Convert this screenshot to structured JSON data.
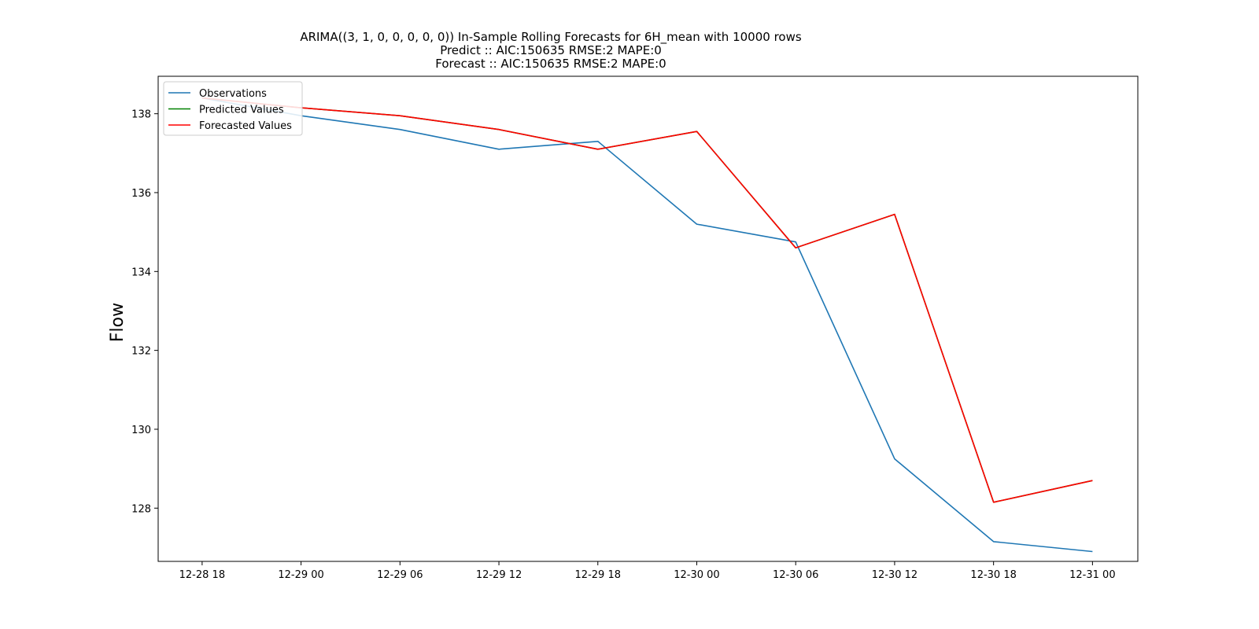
{
  "chart_data": {
    "type": "line",
    "title": [
      "ARIMA((3, 1, 0, 0, 0, 0, 0)) In-Sample Rolling Forecasts for 6H_mean with 10000 rows",
      "Predict :: AIC:150635 RMSE:2 MAPE:0",
      "Forecast :: AIC:150635 RMSE:2 MAPE:0"
    ],
    "xlabel": "",
    "ylabel": "Flow",
    "x": [
      "12-28 18",
      "12-29 00",
      "12-29 06",
      "12-29 12",
      "12-29 18",
      "12-30 00",
      "12-30 06",
      "12-30 12",
      "12-30 18",
      "12-31 00"
    ],
    "x_ticks": [
      "12-28 18",
      "12-29 00",
      "12-29 06",
      "12-29 12",
      "12-29 18",
      "12-30 00",
      "12-30 06",
      "12-30 12",
      "12-30 18",
      "12-31 00"
    ],
    "y_ticks": [
      128,
      130,
      132,
      134,
      136,
      138
    ],
    "xlim": [
      "12-28 15:20",
      "12-31 02:45"
    ],
    "ylim": [
      126.65,
      138.95
    ],
    "series": [
      {
        "name": "Observations",
        "color": "#1f77b4",
        "values": [
          138.4,
          137.95,
          137.6,
          137.1,
          137.3,
          135.2,
          134.75,
          129.25,
          127.15,
          126.9
        ]
      },
      {
        "name": "Predicted Values",
        "color": "#008000",
        "values": [
          138.4,
          138.15,
          137.95,
          137.6,
          137.1,
          137.55,
          134.6,
          135.45,
          128.15,
          128.7
        ]
      },
      {
        "name": "Forecasted Values",
        "color": "#ff0000",
        "values": [
          138.4,
          138.15,
          137.95,
          137.6,
          137.1,
          137.55,
          134.6,
          135.45,
          128.15,
          128.7
        ]
      }
    ],
    "grid": false,
    "legend_position": "top-left"
  }
}
